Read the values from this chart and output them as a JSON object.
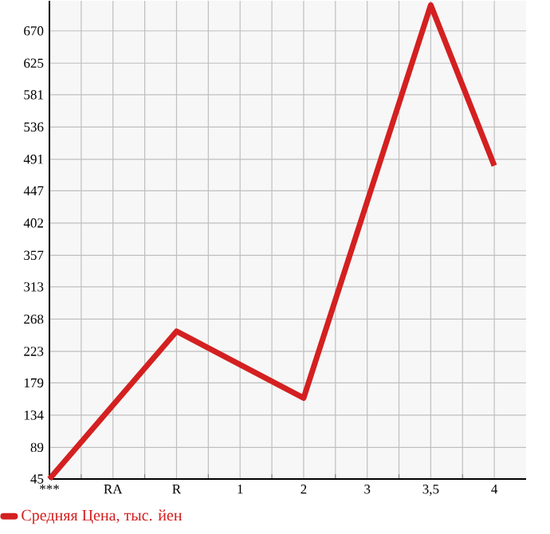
{
  "chart_data": {
    "type": "line",
    "categories": [
      "***",
      "RA",
      "R",
      "1",
      "2",
      "3",
      "3,5",
      "4"
    ],
    "series": [
      {
        "name": "Средняя Цена, тыс. йен",
        "color": "#d42020",
        "values": [
          45,
          null,
          251,
          null,
          158,
          null,
          706,
          482
        ]
      }
    ],
    "ylim": [
      45,
      712
    ],
    "yticks": [
      45,
      89,
      134,
      179,
      223,
      268,
      313,
      357,
      402,
      447,
      491,
      536,
      581,
      625,
      670
    ],
    "grid": true,
    "legend": "bottom",
    "marker": "none",
    "line_style": "solid"
  }
}
